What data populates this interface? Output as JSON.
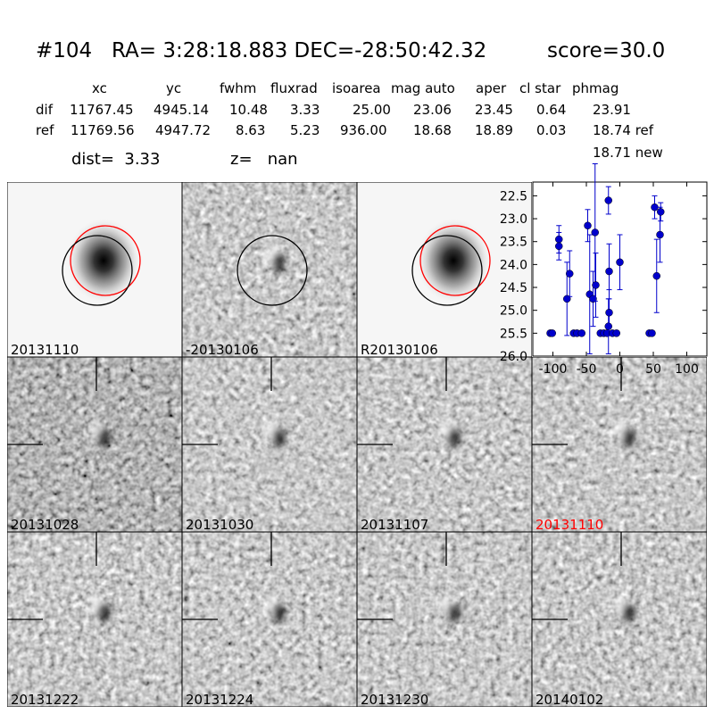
{
  "header": {
    "id": "#104",
    "coords": "RA= 3:28:18.883 DEC=-28:50:42.32",
    "score": "score=30.0"
  },
  "table": {
    "columns": [
      "xc",
      "yc",
      "fwhm",
      "fluxrad",
      "isoarea",
      "mag auto",
      "aper",
      "cl star",
      "phmag"
    ],
    "rows": [
      {
        "label": "dif",
        "cells": [
          "11767.45",
          "4945.14",
          "10.48",
          "3.33",
          "25.00",
          "23.06",
          "23.45",
          "0.64",
          "23.91"
        ]
      },
      {
        "label": "ref",
        "cells": [
          "11769.56",
          "4947.72",
          "8.63",
          "5.23",
          "936.00",
          "18.68",
          "18.89",
          "0.03",
          "18.74 ref"
        ]
      }
    ],
    "extra": "18.71 new"
  },
  "dist": {
    "dist": "dist=  3.33",
    "z": "z=   nan"
  },
  "panels": {
    "top": [
      "20131110",
      "-20130106",
      "R20130106"
    ],
    "grid": [
      {
        "label": "20131028"
      },
      {
        "label": "20131030"
      },
      {
        "label": "20131107"
      },
      {
        "label": "20131110",
        "color": "#ff0000"
      },
      {
        "label": "20131222"
      },
      {
        "label": "20131224"
      },
      {
        "label": "20131230"
      },
      {
        "label": "20140102"
      }
    ]
  },
  "chart_data": {
    "type": "scatter",
    "x": [
      -104,
      -101,
      -91,
      -91,
      -79,
      -75,
      -69,
      -64,
      -57,
      -48,
      -45,
      -40,
      -37,
      -36,
      -29,
      -24,
      -19,
      -17,
      -17,
      -16,
      -16,
      -11,
      -5,
      0,
      44,
      48,
      52,
      55,
      60,
      61
    ],
    "series": [
      {
        "color": "#0000cc",
        "values": [
          25.5,
          25.5,
          23.45,
          23.6,
          24.75,
          24.2,
          25.5,
          25.5,
          25.5,
          23.15,
          24.65,
          24.75,
          23.3,
          24.45,
          25.5,
          25.5,
          25.5,
          22.6,
          25.35,
          24.15,
          25.05,
          25.5,
          25.5,
          23.95,
          25.5,
          25.5,
          22.75,
          24.25,
          23.35,
          22.85
        ],
        "errors": [
          0.05,
          0.05,
          0.3,
          0.3,
          0.8,
          0.5,
          0.05,
          0.05,
          0.05,
          0.35,
          1.3,
          0.6,
          1.5,
          0.7,
          0.05,
          0.05,
          0.05,
          0.3,
          0.6,
          0.6,
          0.5,
          0.05,
          0.05,
          0.6,
          0.05,
          0.05,
          0.25,
          0.8,
          0.6,
          0.2
        ]
      }
    ],
    "xlim": [
      -130,
      130
    ],
    "ylim": [
      26.0,
      22.2
    ],
    "xticks": [
      -100,
      -50,
      0,
      50,
      100
    ],
    "yticks": [
      22.5,
      {
        "value": 23,
        "label": "23.0"
      },
      23.5,
      {
        "value": 24,
        "label": "24.0"
      },
      24.5,
      {
        "value": 25,
        "label": "25.0"
      },
      25.5,
      {
        "value": 26,
        "label": "26.0"
      }
    ]
  }
}
